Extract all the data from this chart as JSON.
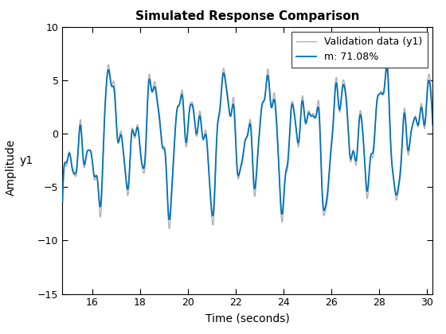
{
  "title": "Simulated Response Comparison",
  "xlabel": "Time (seconds)",
  "ylabel_outer": "Amplitude",
  "ylabel_inner": "y1",
  "xlim": [
    14.75,
    30.25
  ],
  "ylim": [
    -15,
    10
  ],
  "yticks": [
    -15,
    -10,
    -5,
    0,
    5,
    10
  ],
  "xticks": [
    16,
    18,
    20,
    22,
    24,
    26,
    28,
    30
  ],
  "legend_labels": [
    "Validation data (y1)",
    "m: 71.08%"
  ],
  "val_color": "#b0b0b0",
  "model_color": "#0072bd",
  "val_linewidth": 1.0,
  "model_linewidth": 1.3,
  "title_fontsize": 11,
  "label_fontsize": 10,
  "tick_fontsize": 9,
  "legend_fontsize": 9,
  "background_color": "#ffffff",
  "legend_loc": "upper right"
}
